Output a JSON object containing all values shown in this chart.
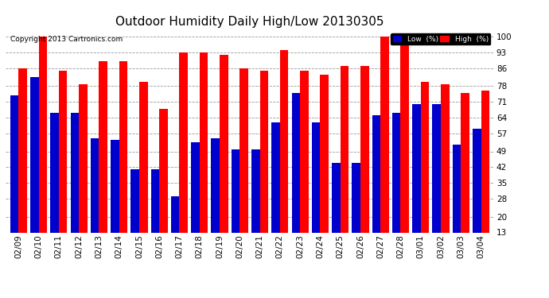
{
  "title": "Outdoor Humidity Daily High/Low 20130305",
  "copyright": "Copyright 2013 Cartronics.com",
  "dates": [
    "02/09",
    "02/10",
    "02/11",
    "02/12",
    "02/13",
    "02/14",
    "02/15",
    "02/16",
    "02/17",
    "02/18",
    "02/19",
    "02/20",
    "02/21",
    "02/22",
    "02/23",
    "02/24",
    "02/25",
    "02/26",
    "02/27",
    "02/28",
    "03/01",
    "03/02",
    "03/03",
    "03/04"
  ],
  "high": [
    86,
    100,
    85,
    79,
    89,
    89,
    80,
    68,
    93,
    93,
    92,
    86,
    85,
    94,
    85,
    83,
    87,
    87,
    100,
    100,
    80,
    79,
    75,
    76
  ],
  "low": [
    74,
    82,
    66,
    66,
    55,
    54,
    41,
    41,
    29,
    53,
    55,
    50,
    50,
    62,
    75,
    62,
    44,
    44,
    65,
    66,
    70,
    70,
    52,
    59
  ],
  "bar_width": 0.42,
  "ymin": 13,
  "ymax": 103,
  "yticks": [
    13,
    20,
    28,
    35,
    42,
    49,
    57,
    64,
    71,
    78,
    86,
    93,
    100
  ],
  "high_color": "#ff0000",
  "low_color": "#0000cc",
  "bg_color": "#ffffff",
  "grid_color": "#999999",
  "title_fontsize": 11,
  "tick_fontsize": 7.5,
  "copyright_fontsize": 6.5
}
